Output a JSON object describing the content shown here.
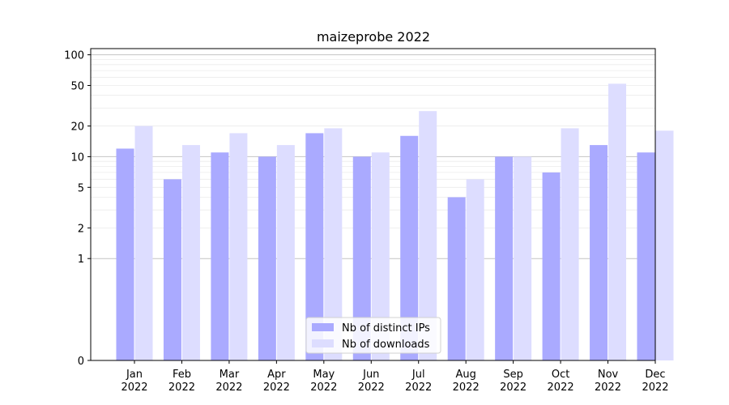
{
  "chart_data": {
    "type": "bar",
    "title": "maizeprobe 2022",
    "xlabel": "",
    "ylabel": "",
    "scale": "symlog",
    "ylim": [
      0,
      115
    ],
    "yticks": [
      0,
      1,
      2,
      5,
      10,
      20,
      50,
      100
    ],
    "grid": true,
    "legend_position": "bottom-center",
    "categories": [
      {
        "month": "Jan",
        "year": "2022"
      },
      {
        "month": "Feb",
        "year": "2022"
      },
      {
        "month": "Mar",
        "year": "2022"
      },
      {
        "month": "Apr",
        "year": "2022"
      },
      {
        "month": "May",
        "year": "2022"
      },
      {
        "month": "Jun",
        "year": "2022"
      },
      {
        "month": "Jul",
        "year": "2022"
      },
      {
        "month": "Aug",
        "year": "2022"
      },
      {
        "month": "Sep",
        "year": "2022"
      },
      {
        "month": "Oct",
        "year": "2022"
      },
      {
        "month": "Nov",
        "year": "2022"
      },
      {
        "month": "Dec",
        "year": "2022"
      }
    ],
    "series": [
      {
        "name": "Nb of distinct IPs",
        "color": "#aaaaff",
        "values": [
          12,
          6,
          11,
          10,
          17,
          10,
          16,
          4,
          10,
          7,
          13,
          11
        ]
      },
      {
        "name": "Nb of downloads",
        "color": "#ddddff",
        "values": [
          20,
          13,
          17,
          13,
          19,
          11,
          28,
          6,
          10,
          19,
          52,
          18
        ]
      }
    ]
  }
}
